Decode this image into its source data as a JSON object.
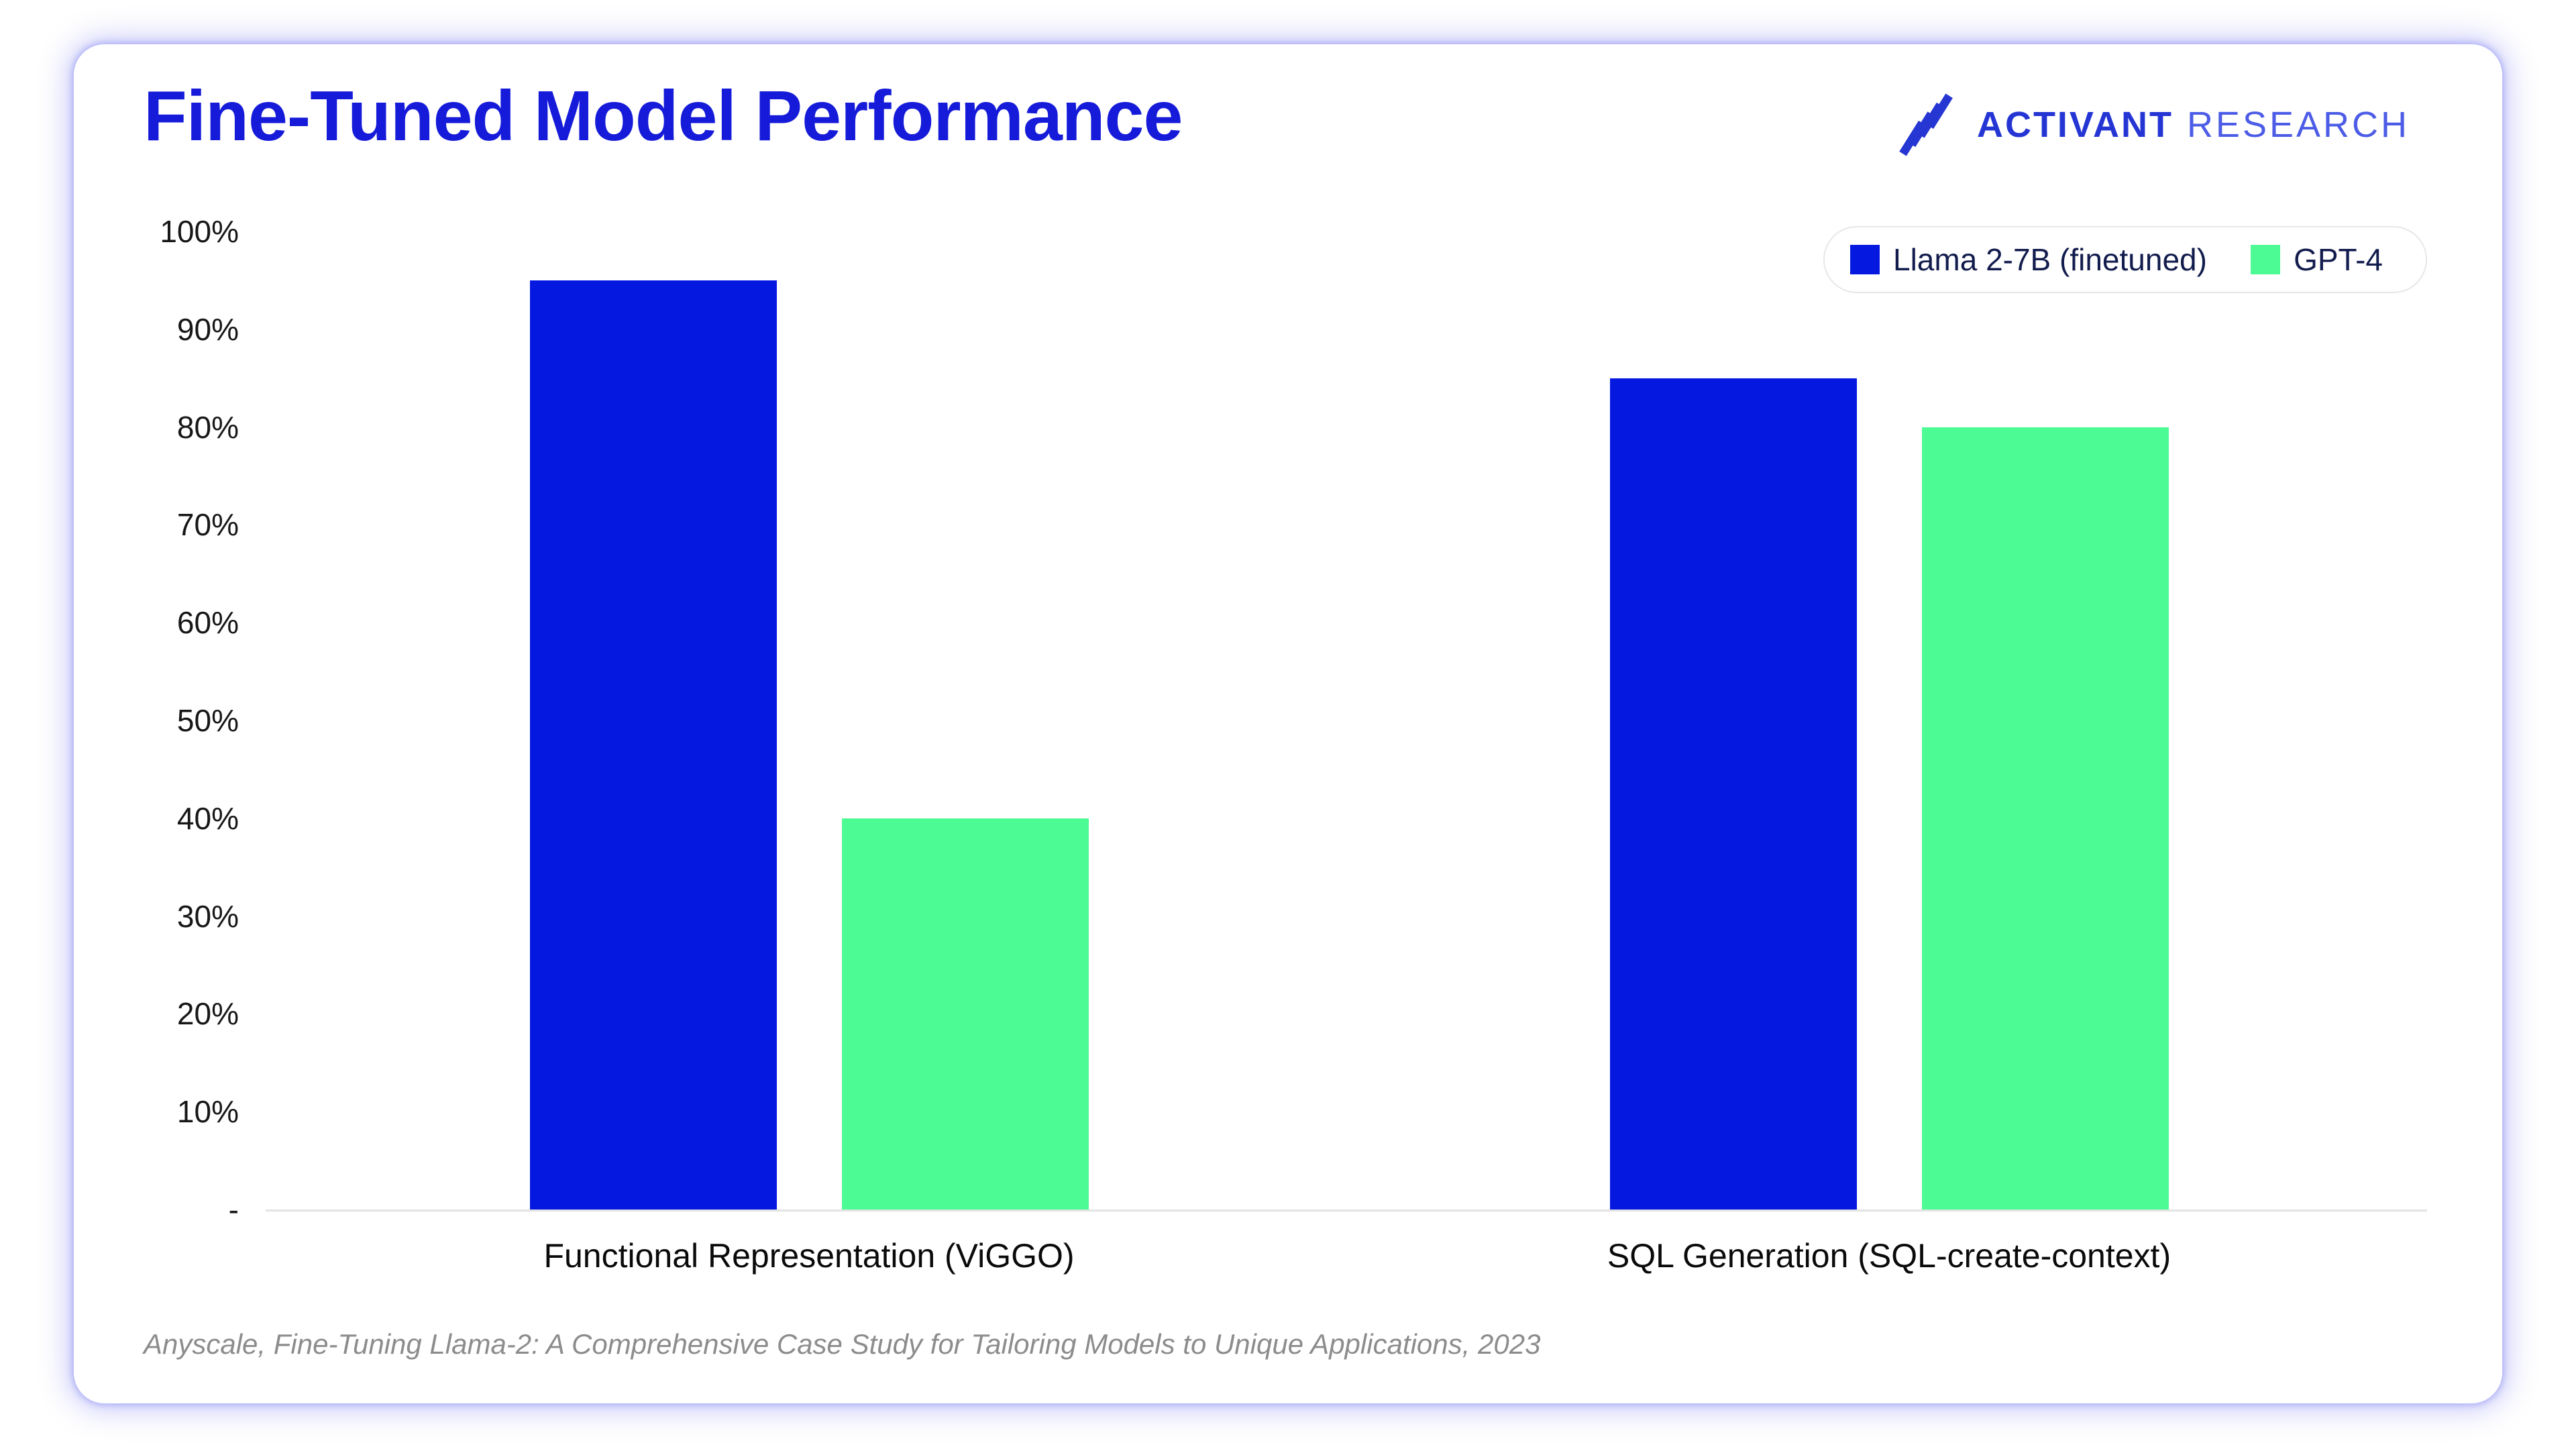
{
  "header": {
    "title": "Fine-Tuned Model Performance",
    "logo_primary": "ACTIVANT",
    "logo_secondary": "RESEARCH",
    "logo_color_primary": "#2435d4",
    "logo_color_secondary": "#4c5ce6"
  },
  "chart_data": {
    "type": "bar",
    "title": "Fine-Tuned Model Performance",
    "categories": [
      "Functional Representation (ViGGO)",
      "SQL Generation (SQL-create-context)"
    ],
    "series": [
      {
        "name": "Llama 2-7B (finetuned)",
        "color": "#0518e0",
        "values": [
          95,
          85
        ]
      },
      {
        "name": "GPT-4",
        "color": "#4dfb94",
        "values": [
          40,
          80
        ]
      }
    ],
    "ylim": [
      0,
      100
    ],
    "ytick_step": 10,
    "ytick_labels": [
      "100%",
      "90%",
      "80%",
      "70%",
      "60%",
      "50%",
      "40%",
      "30%",
      "20%",
      "10%",
      "-"
    ],
    "ylabel": "",
    "xlabel": "",
    "grid": false,
    "legend_position": "top-right"
  },
  "footer": {
    "citation": "Anyscale, Fine-Tuning Llama-2: A Comprehensive Case Study for Tailoring Models to Unique Applications, 2023"
  }
}
